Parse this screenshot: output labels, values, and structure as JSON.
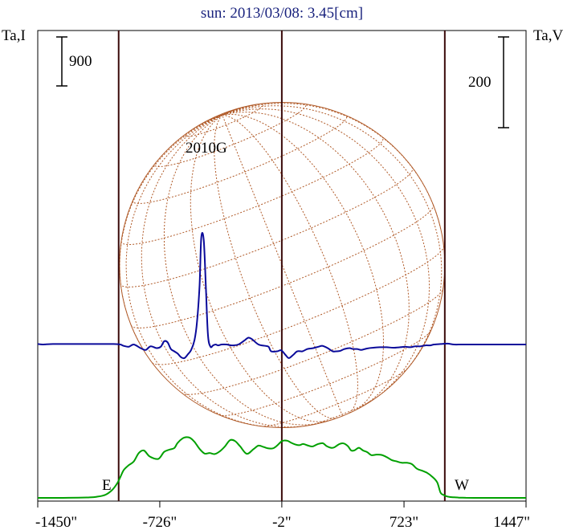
{
  "title": "sun: 2013/03/08: 3.45[cm]",
  "left_axis_label": "Ta,I",
  "right_axis_label": "Ta,V",
  "left_scale_label": "900",
  "right_scale_label": "200",
  "east_label": "E",
  "west_label": "W",
  "region_label": "2010G",
  "colors": {
    "intensity": "#00a000",
    "polarization": "#0a0a9a",
    "limb": "#b05a28",
    "grid": "#b05a28",
    "markers": "#3a0a0a"
  },
  "chart_data": {
    "type": "line",
    "title": "sun: 2013/03/08: 3.45[cm]",
    "xlabel": "",
    "x_ticks": [
      -1450,
      -726,
      -2,
      723,
      1447
    ],
    "x_tick_labels": [
      "-1450\"",
      "-726\"",
      "-2\"",
      "723\"",
      "1447\""
    ],
    "xlim": [
      -1450,
      1447
    ],
    "vertical_markers": [
      -970,
      -2,
      965
    ],
    "solar_disk_radius_arcsec": 965,
    "series": [
      {
        "name": "Ta,I",
        "axis": "left",
        "x": [
          -1450,
          -1390,
          -1300,
          -1210,
          -1150,
          -1100,
          -1050,
          -1010,
          -980,
          -960,
          -940,
          -910,
          -880,
          -850,
          -820,
          -790,
          -760,
          -735,
          -720,
          -700,
          -670,
          -640,
          -620,
          -590,
          -565,
          -545,
          -520,
          -490,
          -460,
          -430,
          -400,
          -370,
          -340,
          -310,
          -280,
          -250,
          -210,
          -170,
          -140,
          -110,
          -85,
          -55,
          -30,
          0,
          30,
          55,
          85,
          105,
          125,
          155,
          180,
          210,
          240,
          265,
          290,
          310,
          340,
          365,
          390,
          410,
          430,
          455,
          480,
          505,
          530,
          560,
          590,
          620,
          650,
          680,
          710,
          740,
          770,
          800,
          830,
          860,
          890,
          920,
          940,
          960,
          980,
          1000,
          1020,
          1050,
          1090,
          1140,
          1200,
          1260,
          1330,
          1400,
          1447
        ],
        "y": [
          0,
          0,
          0.5,
          3,
          8,
          20,
          55,
          140,
          260,
          380,
          510,
          600,
          670,
          825,
          870,
          770,
          725,
          715,
          760,
          845,
          885,
          915,
          1010,
          1095,
          1115,
          1100,
          1030,
          900,
          815,
          825,
          805,
          855,
          945,
          1060,
          1045,
          950,
          810,
          895,
          960,
          935,
          910,
          910,
          960,
          1045,
          1050,
          1010,
          975,
          970,
          990,
          960,
          945,
          985,
          1005,
          950,
          920,
          930,
          990,
          1000,
          950,
          870,
          875,
          920,
          870,
          840,
          785,
          795,
          790,
          750,
          695,
          670,
          645,
          645,
          620,
          535,
          500,
          460,
          390,
          285,
          95,
          50,
          25,
          15,
          10,
          5,
          2,
          0.5,
          0,
          0,
          0,
          0,
          0
        ]
      },
      {
        "name": "Ta,V",
        "axis": "right",
        "x": [
          -1450,
          -1420,
          -1400,
          -1360,
          -1300,
          -1200,
          -1100,
          -1000,
          -960,
          -940,
          -910,
          -880,
          -840,
          -810,
          -780,
          -745,
          -720,
          -700,
          -680,
          -660,
          -640,
          -620,
          -600,
          -580,
          -560,
          -540,
          -520,
          -505,
          -490,
          -480,
          -465,
          -452,
          -440,
          -425,
          -410,
          -395,
          -380,
          -360,
          -330,
          -300,
          -260,
          -220,
          -200,
          -180,
          -140,
          -100,
          -80,
          -65,
          -30,
          -5,
          20,
          40,
          65,
          90,
          120,
          150,
          185,
          215,
          240,
          270,
          300,
          320,
          345,
          370,
          400,
          420,
          445,
          470,
          500,
          540,
          580,
          620,
          660,
          700,
          730,
          760,
          790,
          820,
          850,
          880,
          900,
          940,
          980,
          1020,
          1060,
          1100,
          1150,
          1200,
          1250,
          1300,
          1350,
          1400,
          1447
        ],
        "y": [
          1,
          0,
          0.5,
          1,
          1,
          1,
          1,
          1,
          0,
          -3,
          -5,
          0,
          -8,
          -12,
          -4,
          -8,
          -5,
          7,
          5,
          -10,
          -15,
          -20,
          -28,
          -30,
          -22,
          -12,
          10,
          50,
          130,
          235,
          230,
          120,
          20,
          -5,
          -2,
          0,
          -2,
          0,
          0,
          -2,
          0,
          10,
          15,
          12,
          0,
          -3,
          -5,
          -15,
          -15,
          -13,
          -23,
          -30,
          -23,
          -15,
          -15,
          -10,
          -8,
          -5,
          -3,
          -8,
          -15,
          -15,
          -14,
          -10,
          -8,
          -10,
          -10,
          -12,
          -9,
          -7,
          -6,
          -6,
          -7,
          -6,
          -5,
          -6,
          -4,
          -4,
          -2,
          -2,
          0,
          1,
          2,
          0,
          0,
          0,
          0,
          0,
          0,
          0,
          0,
          0,
          0
        ]
      }
    ]
  }
}
